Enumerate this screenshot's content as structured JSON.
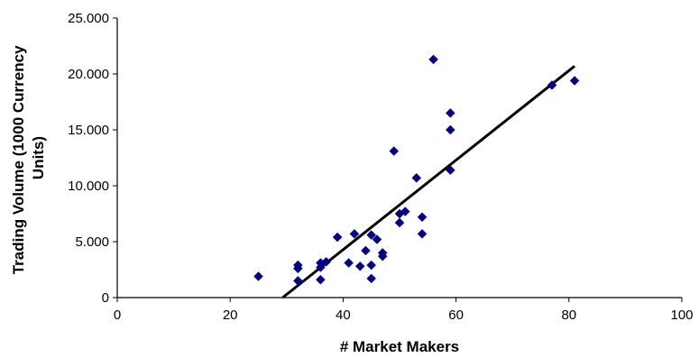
{
  "chart_data": {
    "type": "scatter",
    "xlabel": "# Market Makers",
    "ylabel_lines": [
      "Trading Volume (1000 Currency",
      "Units)"
    ],
    "xlim": [
      0,
      100
    ],
    "ylim": [
      0,
      25000
    ],
    "x_ticks": [
      0,
      20,
      40,
      60,
      80,
      100
    ],
    "y_ticks": [
      0,
      5000,
      10000,
      15000,
      20000,
      25000
    ],
    "x_tick_labels": [
      "0",
      "20",
      "40",
      "60",
      "80",
      "100"
    ],
    "y_tick_labels": [
      "0",
      "5.000",
      "10.000",
      "15.000",
      "20.000",
      "25.000"
    ],
    "grid": false,
    "marker_color": "#00008B",
    "trendline_color": "#000000",
    "points": [
      {
        "x": 25,
        "y": 1900
      },
      {
        "x": 32,
        "y": 2900
      },
      {
        "x": 32,
        "y": 2600
      },
      {
        "x": 32,
        "y": 1500
      },
      {
        "x": 36,
        "y": 3100
      },
      {
        "x": 36,
        "y": 2700
      },
      {
        "x": 36,
        "y": 1600
      },
      {
        "x": 37,
        "y": 3200
      },
      {
        "x": 39,
        "y": 5400
      },
      {
        "x": 41,
        "y": 3100
      },
      {
        "x": 42,
        "y": 5700
      },
      {
        "x": 43,
        "y": 2800
      },
      {
        "x": 44,
        "y": 4200
      },
      {
        "x": 45,
        "y": 5600
      },
      {
        "x": 45,
        "y": 2900
      },
      {
        "x": 45,
        "y": 1700
      },
      {
        "x": 46,
        "y": 5200
      },
      {
        "x": 47,
        "y": 4000
      },
      {
        "x": 47,
        "y": 3700
      },
      {
        "x": 49,
        "y": 13100
      },
      {
        "x": 50,
        "y": 7500
      },
      {
        "x": 50,
        "y": 6700
      },
      {
        "x": 51,
        "y": 7700
      },
      {
        "x": 53,
        "y": 10700
      },
      {
        "x": 54,
        "y": 7200
      },
      {
        "x": 54,
        "y": 5700
      },
      {
        "x": 56,
        "y": 21300
      },
      {
        "x": 59,
        "y": 16500
      },
      {
        "x": 59,
        "y": 15000
      },
      {
        "x": 59,
        "y": 11400
      },
      {
        "x": 77,
        "y": 19000
      },
      {
        "x": 81,
        "y": 19400
      }
    ],
    "trendline": {
      "x": [
        29.3,
        81
      ],
      "y": [
        0,
        20700
      ]
    }
  }
}
